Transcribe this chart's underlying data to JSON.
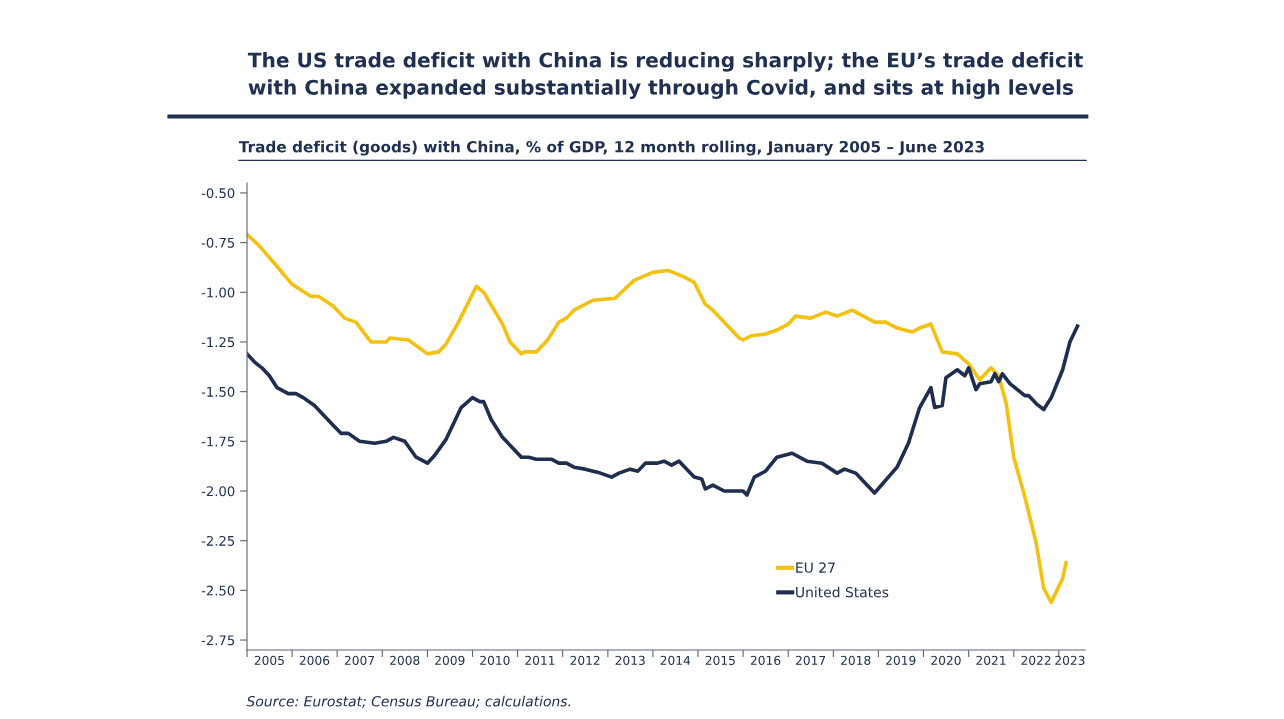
{
  "chart_data": {
    "type": "line",
    "title": "The US trade deficit with China is reducing sharply; the EU’s trade deficit\nwith China expanded substantially through Covid, and sits at high levels",
    "subtitle": "Trade deficit (goods) with China, % of GDP, 12 month rolling, January 2005 – June 2023",
    "annotations": [
      "Source: Eurostat; Census Bureau; calculations."
    ],
    "xlim": [
      "2005-01",
      "2023-08"
    ],
    "xticks": [
      {
        "value": "2005-01",
        "label": null
      },
      {
        "value": "2006-01",
        "label": null
      },
      {
        "value": "2007-01",
        "label": null
      },
      {
        "value": "2008-01",
        "label": null
      },
      {
        "value": "2009-01",
        "label": null
      },
      {
        "value": "2010-01",
        "label": null
      },
      {
        "value": "2011-01",
        "label": null
      },
      {
        "value": "2012-01",
        "label": null
      },
      {
        "value": "2013-01",
        "label": null
      },
      {
        "value": "2014-01",
        "label": null
      },
      {
        "value": "2015-01",
        "label": null
      },
      {
        "value": "2016-01",
        "label": null
      },
      {
        "value": "2017-01",
        "label": null
      },
      {
        "value": "2018-01",
        "label": null
      },
      {
        "value": "2019-01",
        "label": null
      },
      {
        "value": "2020-01",
        "label": null
      },
      {
        "value": "2021-01",
        "label": null
      },
      {
        "value": "2022-01",
        "label": null
      },
      {
        "value": "2023-01",
        "label": null
      },
      {
        "value": "2005-07",
        "label": "2005"
      },
      {
        "value": "2006-07",
        "label": "2006"
      },
      {
        "value": "2007-07",
        "label": "2007"
      },
      {
        "value": "2008-07",
        "label": "2008"
      },
      {
        "value": "2009-07",
        "label": "2009"
      },
      {
        "value": "2010-07",
        "label": "2010"
      },
      {
        "value": "2011-07",
        "label": "2011"
      },
      {
        "value": "2012-07",
        "label": "2012"
      },
      {
        "value": "2013-07",
        "label": "2013"
      },
      {
        "value": "2014-07",
        "label": "2014"
      },
      {
        "value": "2015-07",
        "label": "2015"
      },
      {
        "value": "2016-07",
        "label": "2016"
      },
      {
        "value": "2017-07",
        "label": "2017"
      },
      {
        "value": "2018-07",
        "label": "2018"
      },
      {
        "value": "2019-07",
        "label": "2019"
      },
      {
        "value": "2020-07",
        "label": "2020"
      },
      {
        "value": "2021-07",
        "label": "2021"
      },
      {
        "value": "2022-07",
        "label": "2022"
      },
      {
        "value": "2023-04",
        "label": "2023"
      }
    ],
    "ylim": [
      -2.8,
      -0.45
    ],
    "yticks": [
      {
        "value": -0.5,
        "label": "-0.50"
      },
      {
        "value": -0.75,
        "label": "-0.75"
      },
      {
        "value": -1.0,
        "label": "-1.00"
      },
      {
        "value": -1.25,
        "label": "-1.25"
      },
      {
        "value": -1.5,
        "label": "-1.50"
      },
      {
        "value": -1.75,
        "label": "-1.75"
      },
      {
        "value": -2.0,
        "label": "-2.00"
      },
      {
        "value": -2.25,
        "label": "-2.25"
      },
      {
        "value": -2.5,
        "label": "-2.50"
      },
      {
        "value": -2.75,
        "label": "-2.75"
      }
    ],
    "grid": false,
    "legend": "bottom",
    "marker": "none",
    "line_style": "solid",
    "series": [
      {
        "name": "EU 27",
        "color": "#f2c111",
        "x": [
          "2005-01",
          "2005-04",
          "2005-09",
          "2006-01",
          "2006-06",
          "2006-08",
          "2006-12",
          "2007-03",
          "2007-06",
          "2007-10",
          "2008-02",
          "2008-03",
          "2008-08",
          "2009-01",
          "2009-04",
          "2009-06",
          "2009-09",
          "2010-02",
          "2010-04",
          "2010-09",
          "2010-11",
          "2011-02",
          "2011-03",
          "2011-06",
          "2011-09",
          "2011-12",
          "2012-02",
          "2012-04",
          "2012-09",
          "2013-03",
          "2013-08",
          "2014-01",
          "2014-05",
          "2014-09",
          "2014-12",
          "2015-03",
          "2015-05",
          "2015-12",
          "2016-01",
          "2016-03",
          "2016-07",
          "2016-10",
          "2017-01",
          "2017-03",
          "2017-07",
          "2017-11",
          "2018-02",
          "2018-06",
          "2018-09",
          "2018-12",
          "2019-03",
          "2019-06",
          "2019-10",
          "2019-12",
          "2020-03",
          "2020-06",
          "2020-10",
          "2021-01",
          "2021-04",
          "2021-07",
          "2021-09",
          "2021-11",
          "2022-01",
          "2022-04",
          "2022-07",
          "2022-09",
          "2022-11",
          "2023-01",
          "2023-02",
          "2023-03"
        ],
        "values": [
          -0.71,
          -0.76,
          -0.87,
          -0.96,
          -1.02,
          -1.02,
          -1.07,
          -1.13,
          -1.15,
          -1.25,
          -1.25,
          -1.23,
          -1.24,
          -1.31,
          -1.3,
          -1.26,
          -1.16,
          -0.97,
          -1.0,
          -1.16,
          -1.25,
          -1.31,
          -1.3,
          -1.3,
          -1.24,
          -1.15,
          -1.13,
          -1.09,
          -1.04,
          -1.03,
          -0.94,
          -0.9,
          -0.89,
          -0.92,
          -0.95,
          -1.06,
          -1.09,
          -1.23,
          -1.24,
          -1.22,
          -1.21,
          -1.19,
          -1.16,
          -1.12,
          -1.13,
          -1.1,
          -1.12,
          -1.09,
          -1.12,
          -1.15,
          -1.15,
          -1.18,
          -1.2,
          -1.18,
          -1.16,
          -1.3,
          -1.31,
          -1.36,
          -1.44,
          -1.38,
          -1.42,
          -1.56,
          -1.83,
          -2.03,
          -2.26,
          -2.49,
          -2.56,
          -2.48,
          -2.44,
          -2.36
        ]
      },
      {
        "name": "United States",
        "color": "#1f2d4f",
        "x": [
          "2005-01",
          "2005-03",
          "2005-05",
          "2005-07",
          "2005-09",
          "2005-12",
          "2006-02",
          "2006-04",
          "2006-07",
          "2006-10",
          "2006-12",
          "2007-02",
          "2007-04",
          "2007-07",
          "2007-11",
          "2008-02",
          "2008-04",
          "2008-07",
          "2008-10",
          "2009-01",
          "2009-03",
          "2009-06",
          "2009-10",
          "2010-01",
          "2010-03",
          "2010-04",
          "2010-06",
          "2010-09",
          "2011-02",
          "2011-04",
          "2011-06",
          "2011-10",
          "2011-12",
          "2012-02",
          "2012-04",
          "2012-07",
          "2012-11",
          "2013-02",
          "2013-04",
          "2013-07",
          "2013-09",
          "2013-11",
          "2014-02",
          "2014-04",
          "2014-06",
          "2014-08",
          "2014-12",
          "2015-02",
          "2015-03",
          "2015-05",
          "2015-08",
          "2016-01",
          "2016-02",
          "2016-04",
          "2016-07",
          "2016-10",
          "2017-02",
          "2017-06",
          "2017-10",
          "2018-02",
          "2018-04",
          "2018-07",
          "2018-12",
          "2019-06",
          "2019-09",
          "2019-12",
          "2020-03",
          "2020-04",
          "2020-06",
          "2020-07",
          "2020-10",
          "2020-12",
          "2021-01",
          "2021-03",
          "2021-04",
          "2021-07",
          "2021-08",
          "2021-09",
          "2021-10",
          "2021-12",
          "2022-04",
          "2022-05",
          "2022-07",
          "2022-09",
          "2022-11",
          "2023-02",
          "2023-04",
          "2023-06"
        ],
        "values": [
          -1.31,
          -1.35,
          -1.38,
          -1.42,
          -1.48,
          -1.51,
          -1.51,
          -1.53,
          -1.57,
          -1.63,
          -1.67,
          -1.71,
          -1.71,
          -1.75,
          -1.76,
          -1.75,
          -1.73,
          -1.75,
          -1.83,
          -1.86,
          -1.82,
          -1.74,
          -1.58,
          -1.53,
          -1.55,
          -1.55,
          -1.64,
          -1.73,
          -1.83,
          -1.83,
          -1.84,
          -1.84,
          -1.86,
          -1.86,
          -1.88,
          -1.89,
          -1.91,
          -1.93,
          -1.91,
          -1.89,
          -1.9,
          -1.86,
          -1.86,
          -1.85,
          -1.87,
          -1.85,
          -1.93,
          -1.94,
          -1.99,
          -1.97,
          -2.0,
          -2.0,
          -2.02,
          -1.93,
          -1.9,
          -1.83,
          -1.81,
          -1.85,
          -1.86,
          -1.91,
          -1.89,
          -1.91,
          -2.01,
          -1.88,
          -1.76,
          -1.58,
          -1.48,
          -1.58,
          -1.57,
          -1.43,
          -1.39,
          -1.42,
          -1.38,
          -1.49,
          -1.46,
          -1.45,
          -1.41,
          -1.45,
          -1.41,
          -1.46,
          -1.52,
          -1.52,
          -1.56,
          -1.59,
          -1.53,
          -1.39,
          -1.25,
          -1.17
        ]
      }
    ]
  }
}
